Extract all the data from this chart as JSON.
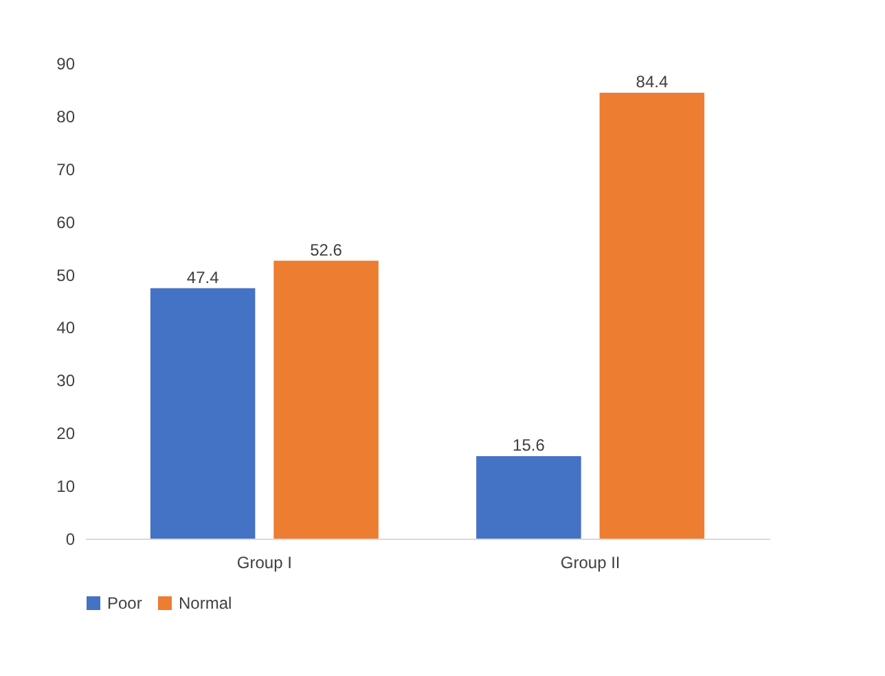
{
  "chart_data": {
    "type": "bar",
    "categories": [
      "Group I",
      "Group II"
    ],
    "series": [
      {
        "name": "Poor",
        "color": "#4472c4",
        "values": [
          47.4,
          15.6
        ]
      },
      {
        "name": "Normal",
        "color": "#ed7d31",
        "values": [
          52.6,
          84.4
        ]
      }
    ],
    "ylim": [
      0,
      90
    ],
    "yticks": [
      0,
      10,
      20,
      30,
      40,
      50,
      60,
      70,
      80,
      90
    ],
    "grid": false,
    "legend": "bottom",
    "data_labels": true
  }
}
